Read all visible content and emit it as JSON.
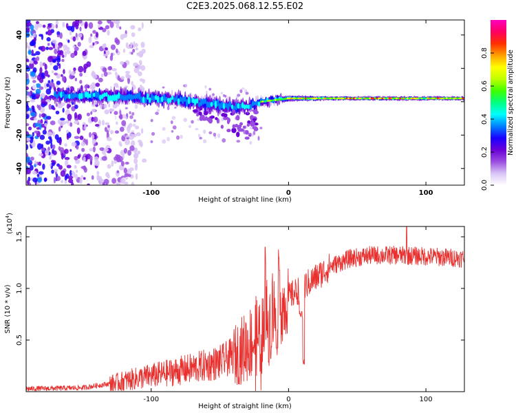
{
  "title": "C2E3.2025.068.12.55.E02",
  "chart_data": [
    {
      "type": "heatmap",
      "name": "spectrogram",
      "xlabel": "Height of straight line (km)",
      "ylabel": "Frequency (Hz)",
      "xlim": [
        -191,
        128
      ],
      "ylim": [
        -50,
        49
      ],
      "xticks": [
        -100,
        0,
        100
      ],
      "yticks": [
        -40,
        -20,
        0,
        20,
        40
      ],
      "colorbar": {
        "label": "Normalized spectral amplitude",
        "range": [
          0,
          1
        ],
        "ticks": [
          "0.0",
          "0.2",
          "0.4",
          "0.6",
          "0.8"
        ],
        "tick_values": [
          0.0,
          0.2,
          0.4,
          0.6,
          0.8
        ],
        "colors": [
          "#ffffff",
          "#d9c4f5",
          "#9a4de0",
          "#6a00d8",
          "#1a00ff",
          "#0080ff",
          "#00ffff",
          "#00ff80",
          "#40ff00",
          "#c0ff00",
          "#ffff00",
          "#ffa000",
          "#ff3000",
          "#ff0060",
          "#ff00c0"
        ]
      },
      "signal_band": [
        {
          "x": -170,
          "center": 4,
          "width": 6
        },
        {
          "x": -120,
          "center": 3,
          "width": 6
        },
        {
          "x": -80,
          "center": 1,
          "width": 6
        },
        {
          "x": -50,
          "center": -2,
          "width": 7
        },
        {
          "x": -30,
          "center": -3,
          "width": 6
        },
        {
          "x": -20,
          "center": 0,
          "width": 4
        },
        {
          "x": 0,
          "center": 2,
          "width": 3
        },
        {
          "x": 30,
          "center": 2,
          "width": 2
        },
        {
          "x": 128,
          "center": 2,
          "width": 2
        }
      ],
      "noise_region_x": [
        -191,
        -125
      ]
    },
    {
      "type": "line",
      "name": "snr",
      "xlabel": "Height of straight line (km)",
      "ylabel": "SNR (10 * v/v)",
      "scale_label": "(x10",
      "scale_exponent": "4",
      "color": "#e8312f",
      "xlim": [
        -191,
        128
      ],
      "ylim": [
        0,
        16000
      ],
      "xticks": [
        -100,
        0,
        100
      ],
      "yticks": [
        0.5,
        1.0,
        1.5
      ],
      "ytick_labels": [
        "0.5",
        "1.0",
        "1.5"
      ],
      "trend": [
        {
          "x": -191,
          "y": 300
        },
        {
          "x": -150,
          "y": 400
        },
        {
          "x": -130,
          "y": 800
        },
        {
          "x": -110,
          "y": 1400
        },
        {
          "x": -90,
          "y": 1900
        },
        {
          "x": -70,
          "y": 2400
        },
        {
          "x": -50,
          "y": 3000
        },
        {
          "x": -40,
          "y": 3700
        },
        {
          "x": -30,
          "y": 4800
        },
        {
          "x": -20,
          "y": 6200
        },
        {
          "x": -10,
          "y": 8000
        },
        {
          "x": 0,
          "y": 9300
        },
        {
          "x": 10,
          "y": 10200
        },
        {
          "x": 20,
          "y": 11200
        },
        {
          "x": 30,
          "y": 12200
        },
        {
          "x": 45,
          "y": 13000
        },
        {
          "x": 60,
          "y": 13300
        },
        {
          "x": 80,
          "y": 13300
        },
        {
          "x": 100,
          "y": 13200
        },
        {
          "x": 128,
          "y": 13000
        }
      ],
      "dips": [
        {
          "x": 10.5,
          "y": 2500
        },
        {
          "x": 9,
          "y": 7000
        }
      ],
      "peaks": [
        {
          "x": -17,
          "y": 14000
        },
        {
          "x": -7,
          "y": 13000
        },
        {
          "x": 86,
          "y": 16000
        }
      ]
    }
  ]
}
